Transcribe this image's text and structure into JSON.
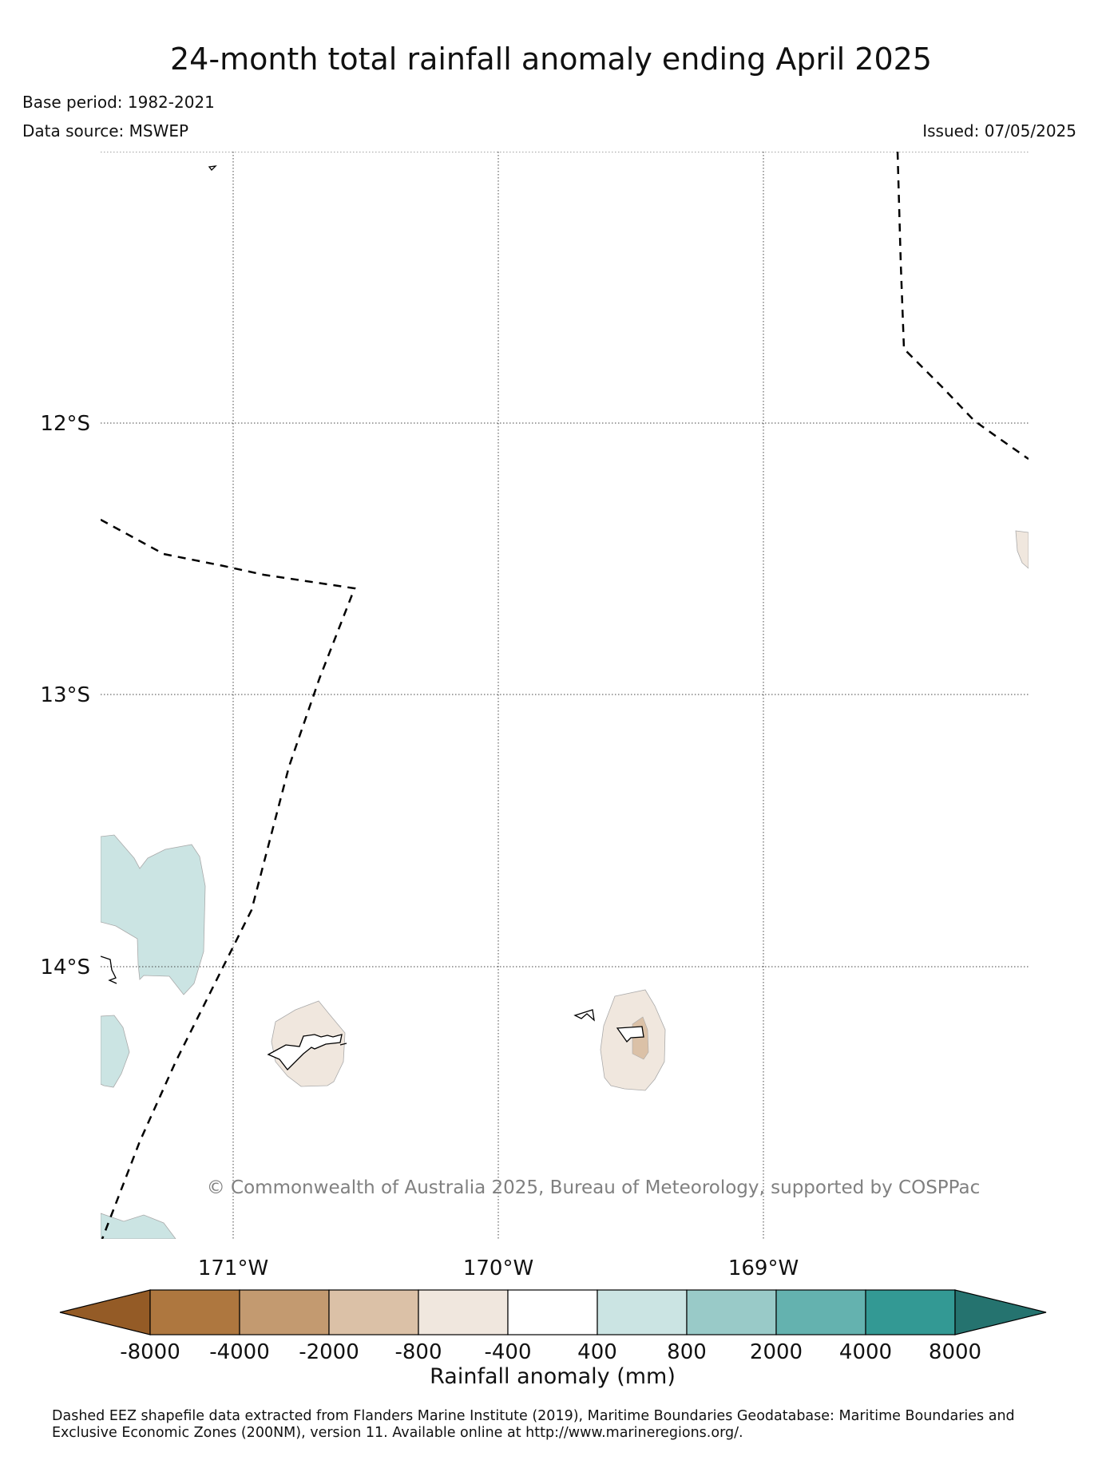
{
  "header": {
    "title": "24-month total rainfall anomaly ending April 2025",
    "base_period": "Base period: 1982-2021",
    "data_source": "Data source: MSWEP",
    "issued": "Issued: 07/05/2025"
  },
  "map": {
    "lat_labels": [
      "12°S",
      "13°S",
      "14°S"
    ],
    "lon_labels": [
      "171°W",
      "170°W",
      "169°W"
    ],
    "copyright": "© Commonwealth of Australia 2025, Bureau of Meteorology, supported by COSPPac",
    "gridlines": "dotted",
    "eez_boundary_style": "dashed"
  },
  "colorbar": {
    "label": "Rainfall anomaly (mm)",
    "ticks": [
      "-8000",
      "-4000",
      "-2000",
      "-800",
      "-400",
      "400",
      "800",
      "2000",
      "4000",
      "8000"
    ],
    "colors": [
      "#945b26",
      "#ae773f",
      "#c39a70",
      "#dbc1a7",
      "#f0e7de",
      "#ffffff",
      "#cbe4e3",
      "#99cac8",
      "#64b2af",
      "#339994",
      "#25736f"
    ]
  },
  "footnote": "Dashed EEZ shapefile data extracted from Flanders Marine Institute (2019), Maritime Boundaries Geodatabase: Maritime Boundaries and Exclusive Economic Zones (200NM), version 11. Available online at http://www.marineregions.org/."
}
